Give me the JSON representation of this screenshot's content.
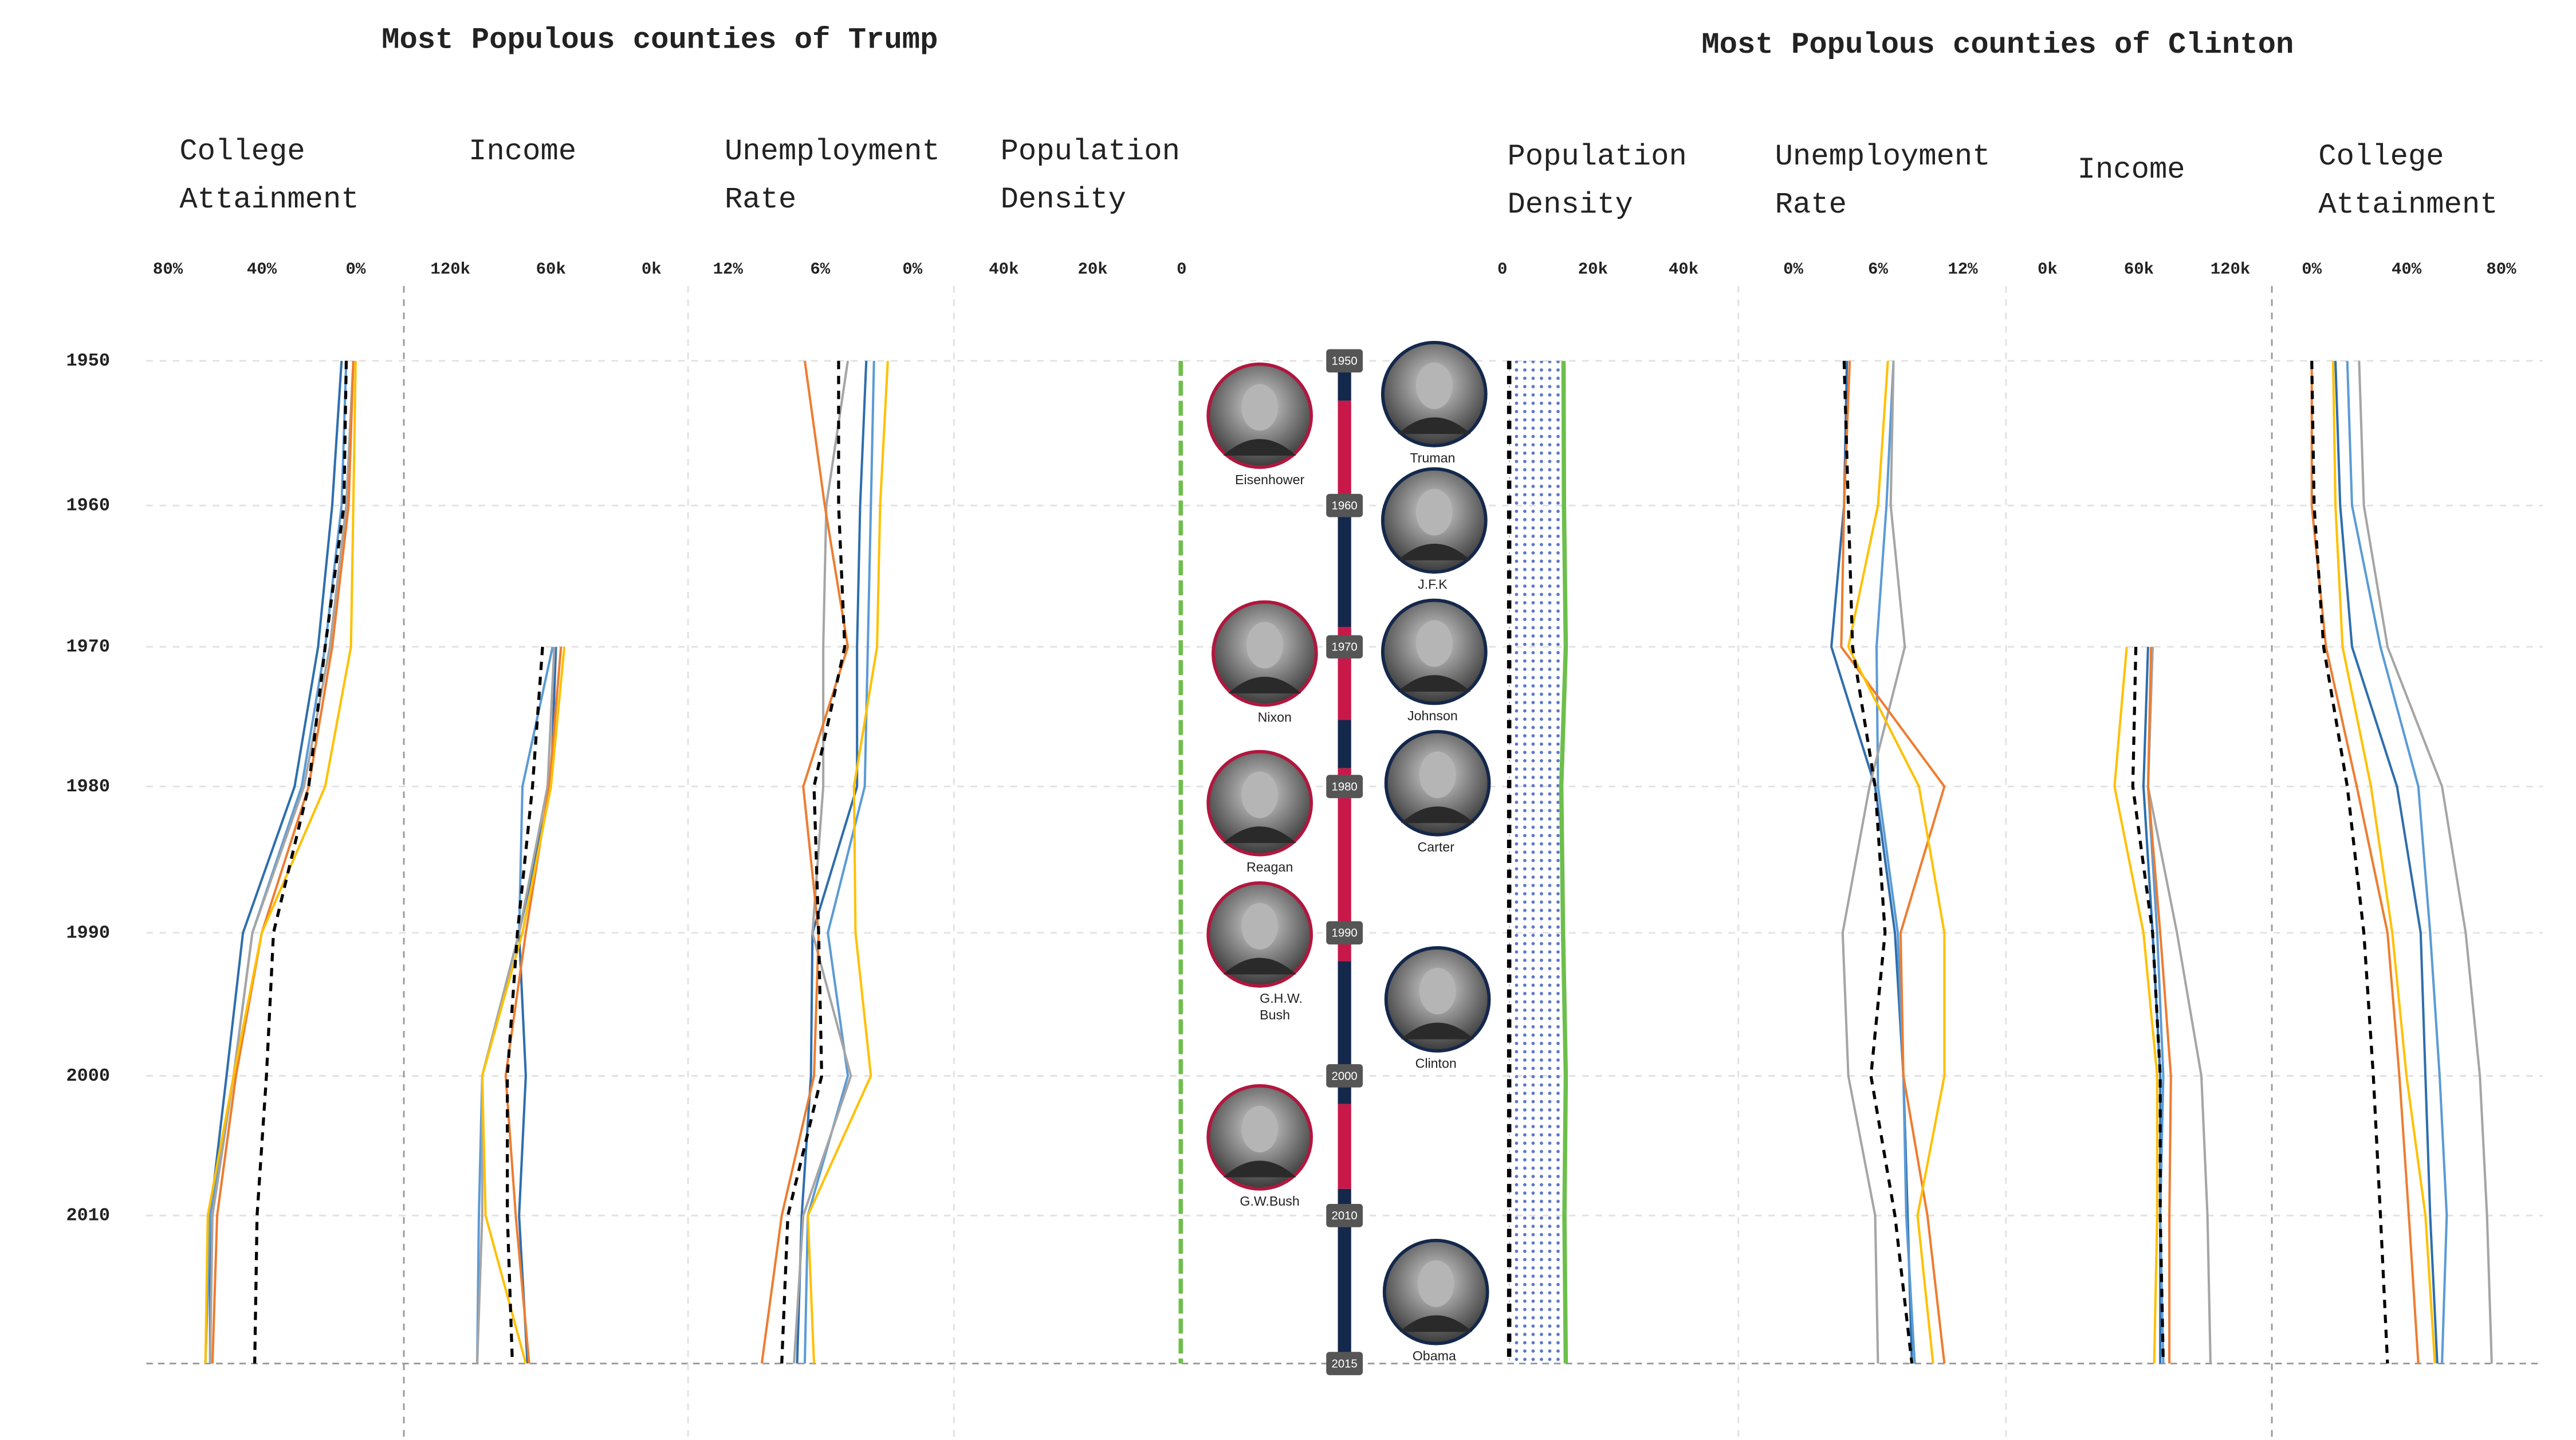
{
  "group_titles": [
    "Most Populous counties of Trump",
    "Most Populous counties of Clinton"
  ],
  "years": [
    "1950",
    "1960",
    "1970",
    "1980",
    "1990",
    "2000",
    "2010",
    "2015"
  ],
  "presidents": [
    {
      "name": "Eisenhower",
      "party": "R"
    },
    {
      "name": "Nixon",
      "party": "R"
    },
    {
      "name": "Reagan",
      "party": "R"
    },
    {
      "name": "G.H.W. Bush",
      "party": "R"
    },
    {
      "name": "G.W.Bush",
      "party": "R"
    },
    {
      "name": "Truman",
      "party": "D"
    },
    {
      "name": "J.F.K",
      "party": "D"
    },
    {
      "name": "Johnson",
      "party": "D"
    },
    {
      "name": "Carter",
      "party": "D"
    },
    {
      "name": "Clinton",
      "party": "D"
    },
    {
      "name": "Obama",
      "party": "D"
    }
  ],
  "chart_data": [
    {
      "type": "line",
      "title": "College Attainment",
      "xlim": [
        80,
        0
      ],
      "xticks": [
        {
          "value": 80,
          "label": "80%"
        },
        {
          "value": 40,
          "label": "40%"
        },
        {
          "value": 0,
          "label": "0%"
        }
      ],
      "series": [
        {
          "color": "#2e6ead",
          "values": [
            6,
            10,
            16,
            26,
            48,
            55,
            62,
            62
          ]
        },
        {
          "color": "#5b9bd5",
          "values": [
            4,
            6,
            13,
            23,
            44,
            52,
            62,
            64
          ]
        },
        {
          "color": "#a5a5a5",
          "values": [
            1,
            4,
            11,
            22,
            44,
            52,
            61,
            62
          ]
        },
        {
          "color": "#ed7d31",
          "values": [
            1,
            3,
            10,
            20,
            40,
            51,
            59,
            61
          ]
        },
        {
          "color": "#ffc000",
          "values": [
            0,
            1,
            2,
            13,
            40,
            52,
            63,
            64
          ]
        },
        {
          "color": "#000000",
          "dash": true,
          "values": [
            4,
            5,
            13,
            20,
            35,
            38,
            42,
            43
          ]
        }
      ]
    },
    {
      "type": "line",
      "title": "Income",
      "xlim": [
        120,
        0
      ],
      "xticks": [
        {
          "value": 120,
          "label": "120k"
        },
        {
          "value": 60,
          "label": "60k"
        },
        {
          "value": 0,
          "label": "0k"
        }
      ],
      "series": [
        {
          "color": "#2e6ead",
          "values": [
            null,
            null,
            57,
            60,
            79,
            75,
            79,
            74
          ]
        },
        {
          "color": "#5b9bd5",
          "values": [
            null,
            null,
            59,
            77,
            79,
            101,
            103,
            104
          ]
        },
        {
          "color": "#a5a5a5",
          "values": [
            null,
            null,
            58,
            62,
            79,
            101,
            101,
            104
          ]
        },
        {
          "color": "#ed7d31",
          "values": [
            null,
            null,
            54,
            61,
            75,
            87,
            81,
            73
          ]
        },
        {
          "color": "#ffc000",
          "values": [
            null,
            null,
            52,
            60,
            77,
            101,
            99,
            75
          ]
        },
        {
          "color": "#000000",
          "dash": true,
          "values": [
            null,
            null,
            65,
            71,
            80,
            86,
            86,
            83
          ]
        }
      ]
    },
    {
      "type": "line",
      "title": "Unemployment Rate",
      "xlim": [
        12,
        0
      ],
      "xticks": [
        {
          "value": 12,
          "label": "12%"
        },
        {
          "value": 6,
          "label": "6%"
        },
        {
          "value": 0,
          "label": "0%"
        }
      ],
      "series": [
        {
          "color": "#2e6ead",
          "values": [
            3.0,
            3.4,
            3.6,
            3.6,
            6.5,
            6.6,
            7.2,
            7.5
          ]
        },
        {
          "color": "#5b9bd5",
          "values": [
            2.5,
            2.7,
            2.9,
            3.1,
            5.5,
            4.2,
            6.8,
            7.0
          ]
        },
        {
          "color": "#a5a5a5",
          "values": [
            4.2,
            5.6,
            5.8,
            5.8,
            6.5,
            4.0,
            7.1,
            7.7
          ]
        },
        {
          "color": "#ed7d31",
          "values": [
            7.0,
            5.7,
            4.2,
            7.1,
            6.1,
            6.4,
            8.5,
            9.8
          ]
        },
        {
          "color": "#ffc000",
          "values": [
            1.6,
            2.1,
            2.3,
            3.8,
            3.7,
            2.7,
            6.8,
            6.4
          ]
        },
        {
          "color": "#000000",
          "dash": true,
          "values": [
            4.8,
            4.8,
            4.4,
            6.4,
            6.1,
            5.9,
            8.1,
            8.5
          ]
        }
      ]
    },
    {
      "type": "line",
      "title": "Population Density",
      "xlim": [
        40,
        0
      ],
      "xticks": [
        {
          "value": 40,
          "label": "40k"
        },
        {
          "value": 20,
          "label": "20k"
        },
        0
      ],
      "series": [
        {
          "color": "#6cbf4a",
          "dash": true,
          "values": [
            0.2,
            0.2,
            0.2,
            0.2,
            0.2,
            0.2,
            0.2,
            0.2
          ]
        }
      ]
    },
    {
      "type": "band",
      "title": "Population Density",
      "xlim": [
        0,
        40
      ],
      "xticks": [
        0,
        {
          "value": 20,
          "label": "20k"
        },
        {
          "value": 40,
          "label": "40k"
        }
      ],
      "series": [
        {
          "color": "#000000",
          "dash": true,
          "values": [
            1.5,
            1.5,
            1.5,
            1.5,
            1.5,
            1.5,
            1.5,
            1.5
          ]
        },
        {
          "color": "#6cbf4a",
          "values": [
            13.5,
            13.6,
            14.0,
            13.0,
            13.4,
            14.0,
            13.7,
            14.0
          ]
        }
      ]
    },
    {
      "type": "line",
      "title": "Unemployment Rate",
      "xlim": [
        0,
        12
      ],
      "xticks": [
        {
          "value": 0,
          "label": "0%"
        },
        {
          "value": 6,
          "label": "6%"
        },
        {
          "value": 12,
          "label": "12%"
        }
      ],
      "series": [
        {
          "color": "#2e6ead",
          "values": [
            3.8,
            3.6,
            2.7,
            5.8,
            7.2,
            7.8,
            8.1,
            8.4
          ]
        },
        {
          "color": "#5b9bd5",
          "values": [
            7.1,
            6.6,
            5.9,
            6.0,
            7.4,
            7.8,
            8.0,
            8.6
          ]
        },
        {
          "color": "#a5a5a5",
          "values": [
            7.1,
            6.9,
            7.9,
            5.4,
            3.5,
            3.9,
            5.8,
            6.0
          ]
        },
        {
          "color": "#ed7d31",
          "values": [
            4.0,
            3.6,
            3.4,
            10.7,
            7.6,
            7.8,
            9.5,
            10.7
          ]
        },
        {
          "color": "#ffc000",
          "values": [
            6.7,
            6.0,
            3.9,
            8.9,
            10.7,
            10.7,
            8.8,
            9.9
          ]
        },
        {
          "color": "#000000",
          "dash": true,
          "values": [
            3.6,
            3.9,
            4.2,
            5.8,
            6.5,
            5.5,
            7.2,
            8.4
          ]
        }
      ]
    },
    {
      "type": "line",
      "title": "Income",
      "xlim": [
        0,
        120
      ],
      "xticks": [
        {
          "value": 0,
          "label": "0k"
        },
        {
          "value": 60,
          "label": "60k"
        },
        {
          "value": 120,
          "label": "120k"
        }
      ],
      "series": [
        {
          "color": "#2e6ead",
          "values": [
            null,
            null,
            66,
            63,
            69,
            74,
            74,
            74
          ]
        },
        {
          "color": "#5b9bd5",
          "values": [
            null,
            null,
            69,
            66,
            72,
            76,
            74,
            76
          ]
        },
        {
          "color": "#a5a5a5",
          "values": [
            null,
            null,
            69,
            66,
            85,
            101,
            105,
            107
          ]
        },
        {
          "color": "#ed7d31",
          "values": [
            null,
            null,
            68,
            66,
            74,
            81,
            80,
            80
          ]
        },
        {
          "color": "#ffc000",
          "values": [
            null,
            null,
            52,
            44,
            63,
            72,
            72,
            70
          ]
        },
        {
          "color": "#000000",
          "dash": true,
          "values": [
            null,
            null,
            58,
            56,
            69,
            74,
            74,
            76
          ]
        }
      ]
    },
    {
      "type": "line",
      "title": "College Attainment",
      "xlim": [
        0,
        80
      ],
      "xticks": [
        {
          "value": 0,
          "label": "0%"
        },
        {
          "value": 40,
          "label": "40%"
        },
        {
          "value": 80,
          "label": "80%"
        }
      ],
      "series": [
        {
          "color": "#2e6ead",
          "values": [
            10,
            12,
            17,
            36,
            46,
            48,
            50,
            53
          ]
        },
        {
          "color": "#5b9bd5",
          "values": [
            15,
            17,
            29,
            45,
            50,
            54,
            57,
            55
          ]
        },
        {
          "color": "#a5a5a5",
          "values": [
            20,
            22,
            32,
            55,
            65,
            71,
            74,
            76
          ]
        },
        {
          "color": "#ed7d31",
          "values": [
            0,
            0,
            6,
            19,
            32,
            37,
            41,
            45
          ]
        },
        {
          "color": "#ffc000",
          "values": [
            9,
            10,
            13,
            25,
            34,
            40,
            48,
            52
          ]
        },
        {
          "color": "#000000",
          "dash": true,
          "values": [
            0,
            1,
            5,
            15,
            22,
            26,
            29,
            32
          ]
        }
      ]
    }
  ]
}
